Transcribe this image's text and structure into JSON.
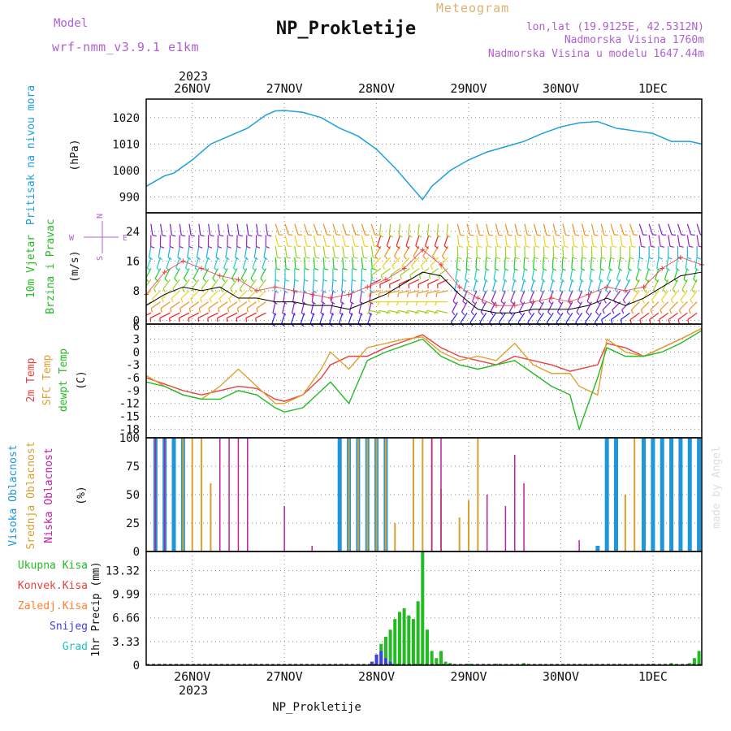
{
  "header": {
    "model_label": "Model",
    "model_name": "wrf-nmm_v3.9.1  e1km",
    "title": "NP_Prokletije",
    "subtitle": "Meteogram",
    "location": "lon,lat (19.9125E, 42.5312N)",
    "altitude": "Nadmorska Visina 1760m",
    "model_altitude": "Nadmorska Visina u modelu 1647.44m",
    "year_top": "2023",
    "year_bottom": "2023",
    "footer_station": "NP_Prokletije",
    "watermark": "made by Angel"
  },
  "colors": {
    "pressure": "#1ea0dc",
    "temp2m": "#e84040",
    "sfc": "#e0a030",
    "dewpt": "#22bb22",
    "high_cloud": "#1e96dc",
    "mid_cloud": "#d8a030",
    "low_cloud": "#c020a0",
    "precip_total": "#22bb22",
    "precip_conv": "#e84040",
    "freezing": "#ff8030",
    "snow": "#4040e0",
    "hail": "#20c0c0",
    "model": "#b060d0"
  },
  "chart_data": [
    {
      "type": "line",
      "panel": "pressure",
      "ylabel_main": "Pritisak na nivou mora",
      "ylabel_unit": "(hPa)",
      "ylim": [
        984,
        1027
      ],
      "yticks": [
        990,
        1000,
        1010,
        1020
      ],
      "x_labels": [
        "26NOV",
        "27NOV",
        "28NOV",
        "29NOV",
        "30NOV",
        "1DEC"
      ],
      "x_range_days": [
        25.5,
        31.53
      ],
      "series": [
        {
          "x": [
            25.5,
            25.6,
            25.7,
            25.8,
            26.0,
            26.2,
            26.4,
            26.6,
            26.8,
            26.9,
            27.0,
            27.2,
            27.4,
            27.6,
            27.8,
            28.0,
            28.2,
            28.4,
            28.5,
            28.6,
            28.8,
            29.0,
            29.2,
            29.4,
            29.6,
            29.8,
            30.0,
            30.2,
            30.4,
            30.6,
            30.8,
            31.0,
            31.2,
            31.4,
            31.53
          ],
          "y": [
            994,
            996,
            998,
            999,
            1004,
            1010,
            1013,
            1016,
            1021,
            1022.5,
            1022.7,
            1022,
            1020,
            1016,
            1013,
            1008,
            1001,
            993,
            989,
            994,
            1000,
            1004,
            1007,
            1009,
            1011,
            1014,
            1016.5,
            1018,
            1018.5,
            1016,
            1015,
            1014,
            1011,
            1011,
            1010
          ]
        }
      ]
    },
    {
      "type": "barbs",
      "panel": "wind",
      "ylabel_main": "10m Vjetar",
      "ylabel_sub": "Brzina i Pravac",
      "ylabel_unit": "(m/s)",
      "compass": [
        "N",
        "S",
        "E",
        "W"
      ],
      "ylim": [
        -1,
        29
      ],
      "yticks": [
        0,
        8,
        16,
        24
      ],
      "series": [
        {
          "name": "speed",
          "x": [
            25.5,
            25.7,
            25.9,
            26.1,
            26.3,
            26.5,
            26.7,
            26.9,
            27.1,
            27.3,
            27.5,
            27.7,
            27.9,
            28.1,
            28.3,
            28.5,
            28.7,
            28.9,
            29.1,
            29.3,
            29.5,
            29.7,
            29.9,
            30.1,
            30.3,
            30.5,
            30.7,
            30.9,
            31.1,
            31.3,
            31.53
          ],
          "y": [
            4,
            7,
            9,
            8,
            9,
            6,
            6,
            5,
            5,
            4,
            4,
            3,
            5,
            7,
            10,
            13,
            12,
            7,
            3,
            2,
            2,
            3,
            3,
            3,
            4,
            6,
            4,
            6,
            9,
            12,
            13
          ]
        },
        {
          "name": "gust",
          "x": [
            25.5,
            25.7,
            25.9,
            26.1,
            26.3,
            26.5,
            26.7,
            26.9,
            27.1,
            27.3,
            27.5,
            27.7,
            27.9,
            28.1,
            28.3,
            28.5,
            28.7,
            28.9,
            29.1,
            29.3,
            29.5,
            29.7,
            29.9,
            30.1,
            30.3,
            30.5,
            30.7,
            30.9,
            31.1,
            31.3,
            31.53
          ],
          "y": [
            7,
            13,
            16,
            14,
            12,
            11,
            8,
            9,
            8,
            7,
            6,
            7,
            9,
            11,
            14,
            19,
            15,
            9,
            6,
            4,
            4,
            5,
            6,
            5,
            7,
            9,
            8,
            9,
            14,
            17,
            15
          ]
        }
      ]
    },
    {
      "type": "line",
      "panel": "temperature",
      "ylabel_a": "2m Temp",
      "ylabel_b": "SFC Temp",
      "ylabel_c": "dewpt Temp",
      "ylabel_unit": "(C)",
      "ylim": [
        -20,
        6.5
      ],
      "yticks": [
        6,
        3,
        0,
        -3,
        -6,
        -9,
        -12,
        -15,
        -18
      ],
      "series": [
        {
          "name": "2m Temp",
          "x": [
            25.5,
            25.7,
            25.9,
            26.1,
            26.3,
            26.5,
            26.7,
            26.9,
            27.0,
            27.2,
            27.4,
            27.5,
            27.7,
            27.9,
            28.1,
            28.3,
            28.5,
            28.7,
            28.9,
            29.1,
            29.3,
            29.5,
            29.7,
            29.9,
            30.1,
            30.2,
            30.4,
            30.5,
            30.7,
            30.9,
            31.1,
            31.3,
            31.53
          ],
          "y": [
            -6,
            -7.5,
            -9,
            -10,
            -9,
            -8,
            -8.5,
            -11,
            -11.5,
            -10,
            -6,
            -3,
            -1,
            -1,
            1,
            2.5,
            4,
            1,
            -1,
            -2,
            -3,
            -1,
            -2,
            -3,
            -4.5,
            -4,
            -3,
            2,
            1,
            -1,
            1,
            3,
            5.5
          ]
        },
        {
          "name": "SFC Temp",
          "x": [
            25.5,
            25.7,
            25.9,
            26.1,
            26.3,
            26.5,
            26.7,
            26.9,
            27.0,
            27.2,
            27.4,
            27.5,
            27.7,
            27.9,
            28.1,
            28.3,
            28.5,
            28.7,
            28.9,
            29.1,
            29.3,
            29.5,
            29.7,
            29.9,
            30.1,
            30.2,
            30.4,
            30.5,
            30.7,
            30.9,
            31.1,
            31.3,
            31.53
          ],
          "y": [
            -5.5,
            -8,
            -10,
            -11,
            -8,
            -4,
            -8,
            -12,
            -12,
            -10,
            -4,
            0,
            -4,
            1,
            2,
            3,
            3.5,
            0,
            -2,
            -1,
            -2,
            2,
            -3,
            -5,
            -5,
            -8,
            -10,
            3,
            0,
            -1,
            1,
            3,
            5.5
          ]
        },
        {
          "name": "dewpt Temp",
          "x": [
            25.5,
            25.7,
            25.9,
            26.1,
            26.3,
            26.5,
            26.7,
            26.9,
            27.0,
            27.2,
            27.4,
            27.5,
            27.7,
            27.9,
            28.1,
            28.3,
            28.5,
            28.7,
            28.9,
            29.1,
            29.3,
            29.5,
            29.7,
            29.9,
            30.1,
            30.2,
            30.4,
            30.5,
            30.7,
            30.9,
            31.1,
            31.3,
            31.53
          ],
          "y": [
            -7,
            -8,
            -10,
            -11,
            -11,
            -9,
            -10,
            -13,
            -14,
            -13,
            -9,
            -7,
            -12,
            -2,
            0,
            1.5,
            3,
            -1,
            -3,
            -4,
            -3,
            -2,
            -5,
            -8,
            -10,
            -18,
            -6,
            1,
            -1,
            -1,
            0,
            2,
            5
          ]
        }
      ]
    },
    {
      "type": "bar",
      "panel": "clouds",
      "ylabel_a": "Visoka Oblacnost",
      "ylabel_b": "Srednja Oblacnost",
      "ylabel_c": "Niska  Oblacnost",
      "ylabel_unit": "(%)",
      "ylim": [
        0,
        100
      ],
      "yticks": [
        0,
        25,
        50,
        75,
        100
      ],
      "series": [
        {
          "name": "high",
          "x": [
            25.6,
            25.7,
            25.8,
            25.9,
            27.6,
            27.7,
            27.8,
            27.9,
            28.0,
            28.1,
            30.4,
            30.5,
            30.6,
            30.9,
            31.0,
            31.1,
            31.2,
            31.3,
            31.4,
            31.5
          ],
          "y": [
            100,
            100,
            100,
            100,
            100,
            100,
            100,
            100,
            100,
            100,
            5,
            100,
            100,
            100,
            100,
            100,
            100,
            100,
            100,
            100
          ]
        },
        {
          "name": "mid",
          "x": [
            25.9,
            26.0,
            26.1,
            26.2,
            27.7,
            27.8,
            27.9,
            28.0,
            28.1,
            28.2,
            28.4,
            28.5,
            28.6,
            28.7,
            28.9,
            29.0,
            29.1,
            30.7,
            30.8
          ],
          "y": [
            100,
            100,
            100,
            60,
            100,
            100,
            100,
            100,
            100,
            25,
            100,
            100,
            100,
            55,
            30,
            45,
            100,
            50,
            100
          ]
        },
        {
          "name": "low",
          "x": [
            25.6,
            25.7,
            26.3,
            26.4,
            26.5,
            26.6,
            27.0,
            27.3,
            28.6,
            28.7,
            29.2,
            29.4,
            29.5,
            29.6,
            30.2
          ],
          "y": [
            100,
            100,
            100,
            100,
            100,
            100,
            40,
            5,
            100,
            100,
            50,
            40,
            85,
            60,
            10
          ]
        }
      ]
    },
    {
      "type": "bar",
      "panel": "precip",
      "legend": [
        "Ukupna  Kisa",
        "Konvek.Kisa",
        "Zaledj.Kisa",
        "Snijeg",
        "Grad"
      ],
      "ylabel": "1hr Precip (mm)",
      "ylim": [
        0,
        16
      ],
      "yticks": [
        0,
        3.33,
        6.66,
        9.99,
        13.32
      ],
      "yticklabels": [
        "0",
        "3.33",
        "6.66",
        "9.99",
        "13.32"
      ],
      "series": [
        {
          "name": "Ukupna  Kisa",
          "x": [
            27.95,
            28.0,
            28.05,
            28.1,
            28.15,
            28.2,
            28.25,
            28.3,
            28.35,
            28.4,
            28.45,
            28.5,
            28.55,
            28.6,
            28.65,
            28.7,
            28.75,
            28.8,
            29.0,
            29.3,
            29.6,
            31.0,
            31.2,
            31.4,
            31.45,
            31.5
          ],
          "y": [
            0.5,
            1.5,
            3,
            4,
            5,
            6.5,
            7.5,
            8,
            7,
            6.5,
            9,
            16,
            5,
            2,
            1,
            2,
            0.5,
            0.3,
            0.2,
            0.2,
            0.3,
            0.2,
            0.3,
            0.3,
            1,
            2
          ]
        },
        {
          "name": "Snijeg",
          "x": [
            27.95,
            28.0,
            28.05,
            28.1,
            28.15
          ],
          "y": [
            0.5,
            1.5,
            2,
            1,
            0.5
          ]
        }
      ]
    }
  ]
}
